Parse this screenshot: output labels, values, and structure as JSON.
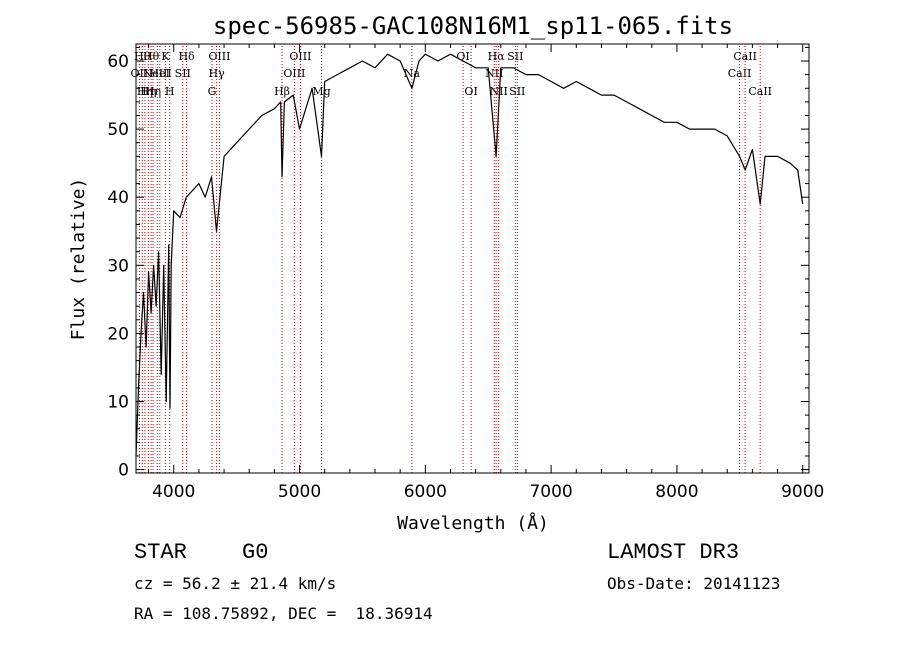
{
  "chart_data": {
    "type": "line",
    "title": "spec-56985-GAC108N16M1_sp11-065.fits",
    "xlabel": "Wavelength (Å)",
    "ylabel": "Flux (relative)",
    "xlim": [
      3700,
      9050
    ],
    "ylim": [
      -0.5,
      62.5
    ],
    "xticks": [
      4000,
      5000,
      6000,
      7000,
      8000,
      9000
    ],
    "yticks": [
      0,
      10,
      20,
      30,
      40,
      50,
      60
    ],
    "series": [
      {
        "name": "flux",
        "x": [
          3700,
          3720,
          3740,
          3760,
          3780,
          3800,
          3820,
          3840,
          3860,
          3880,
          3900,
          3920,
          3940,
          3960,
          3970,
          3980,
          4000,
          4050,
          4100,
          4150,
          4200,
          4250,
          4300,
          4340,
          4400,
          4500,
          4600,
          4700,
          4800,
          4850,
          4861,
          4880,
          4950,
          5000,
          5100,
          5175,
          5200,
          5300,
          5400,
          5500,
          5600,
          5700,
          5800,
          5893,
          5950,
          6000,
          6100,
          6200,
          6300,
          6400,
          6500,
          6563,
          6600,
          6700,
          6800,
          6900,
          7000,
          7100,
          7200,
          7300,
          7400,
          7500,
          7600,
          7700,
          7800,
          7900,
          8000,
          8100,
          8200,
          8300,
          8400,
          8498,
          8542,
          8600,
          8662,
          8700,
          8800,
          8900,
          8960,
          9000
        ],
        "y": [
          2,
          12,
          20,
          26,
          18,
          29,
          23,
          30,
          24,
          32,
          14,
          30,
          10,
          33,
          9,
          30,
          38,
          37,
          40,
          41,
          42,
          40,
          43,
          35,
          46,
          48,
          50,
          52,
          53,
          54,
          43,
          54,
          55,
          50,
          56,
          46,
          57,
          58,
          59,
          60,
          59,
          61,
          60,
          56,
          60,
          61,
          60,
          61,
          60,
          59,
          59,
          46,
          59,
          59,
          58,
          58,
          57,
          56,
          57,
          56,
          55,
          55,
          54,
          53,
          52,
          51,
          51,
          50,
          50,
          50,
          49,
          46,
          44,
          47,
          39,
          46,
          46,
          45,
          44,
          39
        ]
      }
    ],
    "lines": [
      {
        "w": 3727,
        "label": "OII",
        "row": 2
      },
      {
        "w": 3750,
        "label": "Hθ",
        "row": 1
      },
      {
        "w": 3771,
        "label": "Hη",
        "row": 3
      },
      {
        "w": 3798,
        "label": "Hη",
        "row": 3
      },
      {
        "w": 3820,
        "label": "Hθ",
        "row": 1
      },
      {
        "w": 3835,
        "label": "Hη",
        "row": 3
      },
      {
        "w": 3869,
        "label": "NeIII",
        "row": 2
      },
      {
        "w": 3889,
        "label": "HeI",
        "row": 2
      },
      {
        "w": 3933,
        "label": "K",
        "row": 1
      },
      {
        "w": 3968,
        "label": "H",
        "row": 3
      },
      {
        "w": 4072,
        "label": "SII",
        "row": 2
      },
      {
        "w": 4102,
        "label": "Hδ",
        "row": 1
      },
      {
        "w": 4304,
        "label": "G",
        "row": 3
      },
      {
        "w": 4341,
        "label": "Hγ",
        "row": 2
      },
      {
        "w": 4363,
        "label": "OIII",
        "row": 1
      },
      {
        "w": 4861,
        "label": "Hβ",
        "row": 3
      },
      {
        "w": 4959,
        "label": "OIII",
        "row": 2
      },
      {
        "w": 5007,
        "label": "OIII",
        "row": 1
      },
      {
        "w": 5175,
        "label": "Mg",
        "row": 3
      },
      {
        "w": 5893,
        "label": "Na",
        "row": 2
      },
      {
        "w": 6300,
        "label": "OI",
        "row": 1
      },
      {
        "w": 6364,
        "label": "OI",
        "row": 3
      },
      {
        "w": 6548,
        "label": "NII",
        "row": 2
      },
      {
        "w": 6563,
        "label": "Hα",
        "row": 1
      },
      {
        "w": 6583,
        "label": "NII",
        "row": 3
      },
      {
        "w": 6716,
        "label": "SII",
        "row": 1
      },
      {
        "w": 6731,
        "label": "SII",
        "row": 3
      },
      {
        "w": 8498,
        "label": "CaII",
        "row": 2
      },
      {
        "w": 8542,
        "label": "CaII",
        "row": 1
      },
      {
        "w": 8662,
        "label": "CaII",
        "row": 3
      }
    ]
  },
  "info": {
    "object_class": "STAR",
    "subclass": "G0",
    "survey": "LAMOST DR3",
    "cz": "cz = 56.2 ± 21.4 km/s",
    "obs_date": "Obs-Date: 20141123",
    "coords": "RA = 108.75892, DEC =  18.36914"
  }
}
